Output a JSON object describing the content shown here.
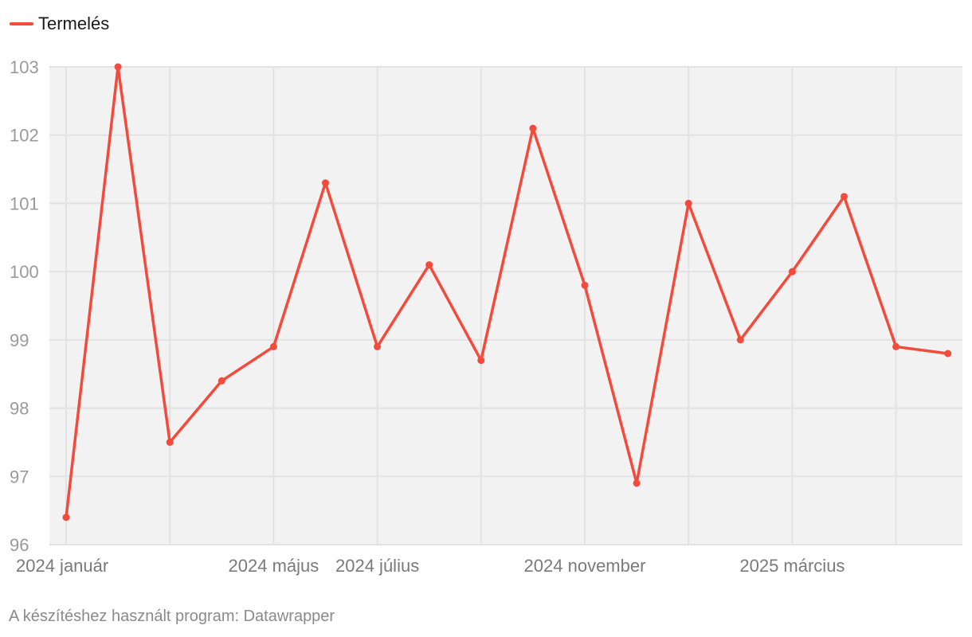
{
  "legend": {
    "label": "Termelés",
    "color": "#f44a3b"
  },
  "footer": {
    "text": "A készítéshez használt program: Datawrapper"
  },
  "chart_data": {
    "type": "line",
    "title": "",
    "xlabel": "",
    "ylabel": "",
    "x": [
      "2024-01",
      "2024-02",
      "2024-03",
      "2024-04",
      "2024-05",
      "2024-06",
      "2024-07",
      "2024-08",
      "2024-09",
      "2024-10",
      "2024-11",
      "2024-12",
      "2025-01",
      "2025-02",
      "2025-03",
      "2025-04",
      "2025-05",
      "2025-06"
    ],
    "series": [
      {
        "name": "Termelés",
        "color": "#f44a3b",
        "values": [
          96.4,
          103,
          97.5,
          98.4,
          98.9,
          101.3,
          98.9,
          100.1,
          98.7,
          102.1,
          99.8,
          96.9,
          101,
          99,
          100,
          101.1,
          98.9,
          98.8
        ]
      }
    ],
    "ylim": [
      96,
      103
    ],
    "yticks": [
      "96",
      "97",
      "98",
      "99",
      "100",
      "101",
      "102",
      "103"
    ],
    "xticks": [
      {
        "at": "2024-01",
        "label": "2024 január"
      },
      {
        "at": "2024-05",
        "label": "2024 május"
      },
      {
        "at": "2024-07",
        "label": "2024 július"
      },
      {
        "at": "2024-11",
        "label": "2024 november"
      },
      {
        "at": "2025-03",
        "label": "2025 március"
      }
    ],
    "grid": true,
    "legend_position": "top-left",
    "colors": {
      "plot_background": "#f2f2f2",
      "gridline": "#e2e2e2",
      "tick_label": "#9a9a9a"
    }
  }
}
